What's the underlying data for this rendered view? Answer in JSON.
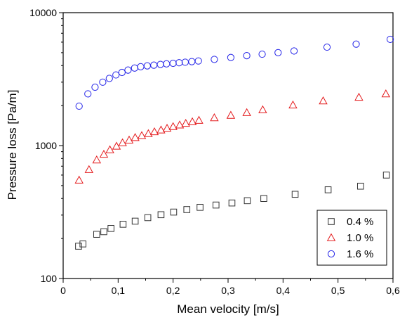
{
  "chart_data": {
    "type": "scatter",
    "xlabel": "Mean velocity [m/s]",
    "ylabel": "Pressure loss [Pa/m]",
    "xlim": [
      0,
      0.6
    ],
    "ylim": [
      100,
      10000
    ],
    "yscale": "log",
    "grid": false,
    "legend_position": "bottom-right",
    "x_ticks": [
      "0",
      "0,1",
      "0,2",
      "0,3",
      "0,4",
      "0,5",
      "0,6"
    ],
    "y_ticks": [
      "100",
      "1000",
      "10000"
    ],
    "series": [
      {
        "name": "0.4 %",
        "marker": "square",
        "color": "#333333",
        "x": [
          0.028,
          0.036,
          0.061,
          0.074,
          0.087,
          0.109,
          0.131,
          0.154,
          0.178,
          0.201,
          0.225,
          0.249,
          0.278,
          0.307,
          0.335,
          0.365,
          0.422,
          0.482,
          0.541,
          0.588
        ],
        "y": [
          175,
          182,
          215,
          225,
          238,
          256,
          270,
          287,
          302,
          316,
          330,
          343,
          357,
          370,
          385,
          400,
          430,
          465,
          495,
          600
        ]
      },
      {
        "name": "1.0 %",
        "marker": "triangle",
        "color": "#e41a1c",
        "x": [
          0.029,
          0.047,
          0.061,
          0.074,
          0.085,
          0.097,
          0.108,
          0.12,
          0.131,
          0.143,
          0.155,
          0.166,
          0.178,
          0.189,
          0.2,
          0.212,
          0.223,
          0.235,
          0.247,
          0.275,
          0.305,
          0.334,
          0.363,
          0.418,
          0.473,
          0.538,
          0.587
        ],
        "y": [
          550,
          660,
          780,
          860,
          930,
          990,
          1050,
          1100,
          1150,
          1190,
          1230,
          1270,
          1310,
          1350,
          1390,
          1430,
          1470,
          1510,
          1550,
          1620,
          1690,
          1770,
          1860,
          2020,
          2170,
          2310,
          2450
        ]
      },
      {
        "name": "1.6 %",
        "marker": "circle",
        "color": "#2323e8",
        "x": [
          0.029,
          0.045,
          0.058,
          0.072,
          0.084,
          0.096,
          0.107,
          0.118,
          0.13,
          0.141,
          0.153,
          0.165,
          0.177,
          0.188,
          0.2,
          0.211,
          0.222,
          0.234,
          0.246,
          0.275,
          0.305,
          0.334,
          0.362,
          0.391,
          0.42,
          0.48,
          0.533,
          0.595
        ],
        "y": [
          1980,
          2450,
          2750,
          3000,
          3200,
          3400,
          3550,
          3700,
          3830,
          3920,
          3980,
          4030,
          4080,
          4120,
          4160,
          4200,
          4240,
          4280,
          4330,
          4450,
          4600,
          4750,
          4870,
          5000,
          5150,
          5500,
          5800,
          6300
        ]
      }
    ]
  }
}
